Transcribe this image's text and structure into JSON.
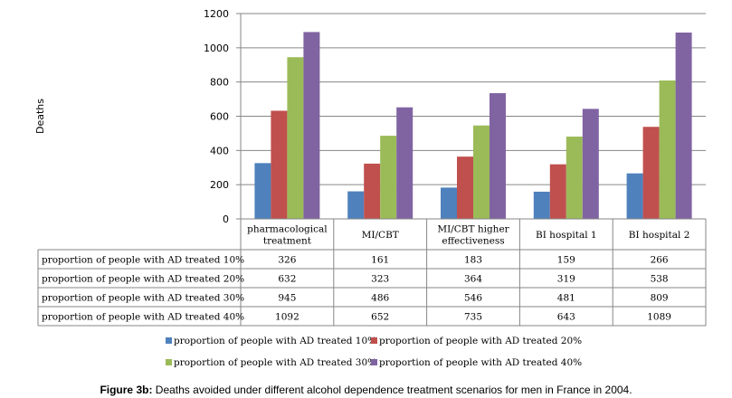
{
  "chart_data": {
    "type": "bar",
    "ylabel": "Deaths",
    "ylim": [
      0,
      1200
    ],
    "yticks": [
      0,
      200,
      400,
      600,
      800,
      1000,
      1200
    ],
    "grid": true,
    "categories": [
      [
        "pharmacological",
        "treatment"
      ],
      [
        "MI/CBT"
      ],
      [
        "MI/CBT higher",
        "effectiveness"
      ],
      [
        "BI hospital 1"
      ],
      [
        "BI hospital 2"
      ]
    ],
    "series": [
      {
        "name": "proportion of people with AD treated 10%",
        "color": "#4F81BD",
        "values": [
          326,
          161,
          183,
          159,
          266
        ]
      },
      {
        "name": "proportion of people with AD treated 20%",
        "color": "#C0504D",
        "values": [
          632,
          323,
          364,
          319,
          538
        ]
      },
      {
        "name": "proportion of people with AD treated 30%",
        "color": "#9BBB59",
        "values": [
          945,
          486,
          546,
          481,
          809
        ]
      },
      {
        "name": "proportion of people with AD treated 40%",
        "color": "#8064A2",
        "values": [
          1092,
          652,
          735,
          643,
          1089
        ]
      }
    ],
    "legend_position": "bottom"
  },
  "caption": {
    "label": "Figure 3b:",
    "text": " Deaths avoided under different alcohol dependence treatment scenarios for men in France in 2004."
  }
}
